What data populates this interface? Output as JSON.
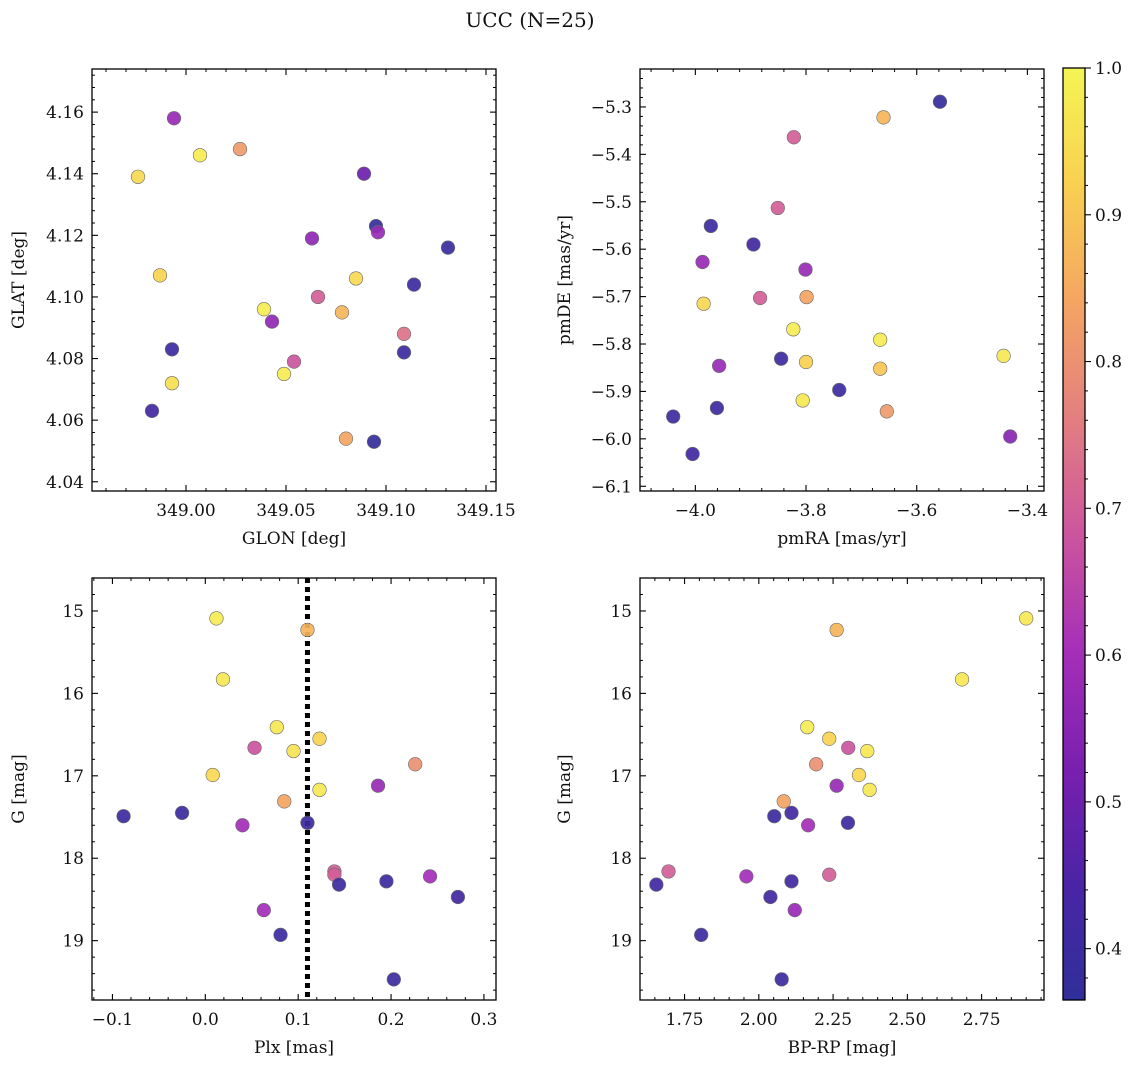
{
  "title": "UCC (N=25)",
  "colorbar": {
    "range": [
      0.365,
      1.0
    ],
    "ticks": [
      0.4,
      0.5,
      0.6,
      0.7,
      0.8,
      0.9,
      1.0
    ],
    "tick_labels": [
      "0.4",
      "0.5",
      "0.6",
      "0.7",
      "0.8",
      "0.9",
      "1.0"
    ],
    "colormap": "plasma (lower half to top)",
    "stops": [
      "#2f2f99",
      "#4a24a6",
      "#7a1fb0",
      "#a52fb8",
      "#cc559e",
      "#e37f7f",
      "#f4a562",
      "#f9d050",
      "#f4f554"
    ]
  },
  "chart_data": [
    {
      "type": "scatter",
      "xlabel": "GLON [deg]",
      "ylabel": "GLAT [deg]",
      "xlim": [
        348.953,
        349.155
      ],
      "ylim": [
        4.037,
        4.174
      ],
      "xticks": [
        349.0,
        349.05,
        349.1,
        349.15
      ],
      "xtick_labels": [
        "349.00",
        "349.05",
        "349.10",
        "349.15"
      ],
      "yticks": [
        4.04,
        4.06,
        4.08,
        4.1,
        4.12,
        4.14,
        4.16
      ],
      "ytick_labels": [
        "4.04",
        "4.06",
        "4.08",
        "4.10",
        "4.12",
        "4.14",
        "4.16"
      ],
      "inverted_y": false,
      "points": [
        {
          "x": 348.976,
          "y": 4.139,
          "c": 0.94
        },
        {
          "x": 348.994,
          "y": 4.158,
          "c": 0.58
        },
        {
          "x": 349.007,
          "y": 4.146,
          "c": 0.98
        },
        {
          "x": 349.027,
          "y": 4.148,
          "c": 0.82
        },
        {
          "x": 349.089,
          "y": 4.14,
          "c": 0.5
        },
        {
          "x": 349.095,
          "y": 4.123,
          "c": 0.38
        },
        {
          "x": 349.096,
          "y": 4.121,
          "c": 0.58
        },
        {
          "x": 349.063,
          "y": 4.119,
          "c": 0.56
        },
        {
          "x": 349.131,
          "y": 4.116,
          "c": 0.39
        },
        {
          "x": 348.987,
          "y": 4.107,
          "c": 0.93
        },
        {
          "x": 349.085,
          "y": 4.106,
          "c": 0.94
        },
        {
          "x": 349.114,
          "y": 4.104,
          "c": 0.4
        },
        {
          "x": 349.066,
          "y": 4.1,
          "c": 0.7
        },
        {
          "x": 349.039,
          "y": 4.096,
          "c": 0.98
        },
        {
          "x": 349.078,
          "y": 4.095,
          "c": 0.87
        },
        {
          "x": 349.043,
          "y": 4.092,
          "c": 0.57
        },
        {
          "x": 349.109,
          "y": 4.088,
          "c": 0.74
        },
        {
          "x": 348.993,
          "y": 4.083,
          "c": 0.4
        },
        {
          "x": 349.109,
          "y": 4.082,
          "c": 0.4
        },
        {
          "x": 349.054,
          "y": 4.079,
          "c": 0.68
        },
        {
          "x": 349.049,
          "y": 4.075,
          "c": 0.98
        },
        {
          "x": 348.993,
          "y": 4.072,
          "c": 0.95
        },
        {
          "x": 348.983,
          "y": 4.063,
          "c": 0.42
        },
        {
          "x": 349.08,
          "y": 4.054,
          "c": 0.84
        },
        {
          "x": 349.094,
          "y": 4.053,
          "c": 0.38
        }
      ]
    },
    {
      "type": "scatter",
      "xlabel": "pmRA [mas/yr]",
      "ylabel": "pmDE [mas/yr]",
      "xlim": [
        -4.1,
        -3.37
      ],
      "ylim": [
        -6.11,
        -5.22
      ],
      "xticks": [
        -4.0,
        -3.8,
        -3.6,
        -3.4
      ],
      "xtick_labels": [
        "−4.0",
        "−3.8",
        "−3.6",
        "−3.4"
      ],
      "yticks": [
        -6.1,
        -6.0,
        -5.9,
        -5.8,
        -5.7,
        -5.6,
        -5.5,
        -5.4,
        -5.3
      ],
      "ytick_labels": [
        "−6.1",
        "−6.0",
        "−5.9",
        "−5.8",
        "−5.7",
        "−5.6",
        "−5.5",
        "−5.4",
        "−5.3"
      ],
      "inverted_y": false,
      "points": [
        {
          "x": -3.558,
          "y": -5.289,
          "c": 0.38
        },
        {
          "x": -3.66,
          "y": -5.322,
          "c": 0.87
        },
        {
          "x": -3.822,
          "y": -5.364,
          "c": 0.7
        },
        {
          "x": -3.851,
          "y": -5.513,
          "c": 0.7
        },
        {
          "x": -3.972,
          "y": -5.551,
          "c": 0.4
        },
        {
          "x": -3.895,
          "y": -5.59,
          "c": 0.42
        },
        {
          "x": -3.987,
          "y": -5.627,
          "c": 0.58
        },
        {
          "x": -3.801,
          "y": -5.643,
          "c": 0.58
        },
        {
          "x": -3.883,
          "y": -5.703,
          "c": 0.7
        },
        {
          "x": -3.799,
          "y": -5.701,
          "c": 0.84
        },
        {
          "x": -3.985,
          "y": -5.715,
          "c": 0.94
        },
        {
          "x": -3.823,
          "y": -5.769,
          "c": 0.98
        },
        {
          "x": -3.666,
          "y": -5.791,
          "c": 0.98
        },
        {
          "x": -3.845,
          "y": -5.831,
          "c": 0.4
        },
        {
          "x": -3.443,
          "y": -5.825,
          "c": 0.97
        },
        {
          "x": -3.8,
          "y": -5.838,
          "c": 0.92
        },
        {
          "x": -3.957,
          "y": -5.846,
          "c": 0.58
        },
        {
          "x": -3.666,
          "y": -5.852,
          "c": 0.9
        },
        {
          "x": -3.74,
          "y": -5.897,
          "c": 0.4
        },
        {
          "x": -3.806,
          "y": -5.919,
          "c": 0.97
        },
        {
          "x": -3.961,
          "y": -5.935,
          "c": 0.4
        },
        {
          "x": -3.654,
          "y": -5.942,
          "c": 0.82
        },
        {
          "x": -4.04,
          "y": -5.953,
          "c": 0.4
        },
        {
          "x": -3.431,
          "y": -5.995,
          "c": 0.55
        },
        {
          "x": -4.005,
          "y": -6.032,
          "c": 0.42
        }
      ]
    },
    {
      "type": "scatter",
      "xlabel": "Plx [mas]",
      "ylabel": "G [mag]",
      "xlim": [
        -0.122,
        0.313
      ],
      "ylim": [
        14.6,
        19.72
      ],
      "xticks": [
        -0.1,
        0.0,
        0.1,
        0.2,
        0.3
      ],
      "xtick_labels": [
        "−0.1",
        "0.0",
        "0.1",
        "0.2",
        "0.3"
      ],
      "yticks": [
        15,
        16,
        17,
        18,
        19
      ],
      "ytick_labels": [
        "15",
        "16",
        "17",
        "18",
        "19"
      ],
      "inverted_y": true,
      "vline": 0.11,
      "points": [
        {
          "x": 0.012,
          "y": 15.09,
          "c": 0.98
        },
        {
          "x": 0.11,
          "y": 15.23,
          "c": 0.87
        },
        {
          "x": 0.019,
          "y": 15.83,
          "c": 0.97
        },
        {
          "x": 0.077,
          "y": 16.41,
          "c": 0.97
        },
        {
          "x": 0.123,
          "y": 16.55,
          "c": 0.93
        },
        {
          "x": 0.053,
          "y": 16.66,
          "c": 0.68
        },
        {
          "x": 0.095,
          "y": 16.7,
          "c": 0.96
        },
        {
          "x": 0.226,
          "y": 16.86,
          "c": 0.8
        },
        {
          "x": 0.008,
          "y": 16.99,
          "c": 0.94
        },
        {
          "x": 0.186,
          "y": 17.12,
          "c": 0.58
        },
        {
          "x": 0.123,
          "y": 17.17,
          "c": 0.97
        },
        {
          "x": 0.085,
          "y": 17.31,
          "c": 0.84
        },
        {
          "x": -0.025,
          "y": 17.45,
          "c": 0.4
        },
        {
          "x": -0.088,
          "y": 17.49,
          "c": 0.4
        },
        {
          "x": 0.11,
          "y": 17.57,
          "c": 0.4
        },
        {
          "x": 0.04,
          "y": 17.6,
          "c": 0.6
        },
        {
          "x": 0.139,
          "y": 18.16,
          "c": 0.7
        },
        {
          "x": 0.139,
          "y": 18.2,
          "c": 0.7
        },
        {
          "x": 0.242,
          "y": 18.22,
          "c": 0.6
        },
        {
          "x": 0.195,
          "y": 18.28,
          "c": 0.4
        },
        {
          "x": 0.144,
          "y": 18.32,
          "c": 0.4
        },
        {
          "x": 0.272,
          "y": 18.47,
          "c": 0.42
        },
        {
          "x": 0.063,
          "y": 18.63,
          "c": 0.6
        },
        {
          "x": 0.081,
          "y": 18.93,
          "c": 0.4
        },
        {
          "x": 0.203,
          "y": 19.47,
          "c": 0.4
        }
      ]
    },
    {
      "type": "scatter",
      "xlabel": "BP-RP [mag]",
      "ylabel": "G [mag]",
      "xlim": [
        1.6,
        2.96
      ],
      "ylim": [
        14.6,
        19.72
      ],
      "xticks": [
        1.75,
        2.0,
        2.25,
        2.5,
        2.75
      ],
      "xtick_labels": [
        "1.75",
        "2.00",
        "2.25",
        "2.50",
        "2.75"
      ],
      "yticks": [
        15,
        16,
        17,
        18,
        19
      ],
      "ytick_labels": [
        "15",
        "16",
        "17",
        "18",
        "19"
      ],
      "inverted_y": true,
      "points": [
        {
          "x": 2.9,
          "y": 15.09,
          "c": 0.97
        },
        {
          "x": 2.262,
          "y": 15.23,
          "c": 0.87
        },
        {
          "x": 2.684,
          "y": 15.83,
          "c": 0.97
        },
        {
          "x": 2.163,
          "y": 16.41,
          "c": 0.98
        },
        {
          "x": 2.237,
          "y": 16.55,
          "c": 0.93
        },
        {
          "x": 2.301,
          "y": 16.66,
          "c": 0.68
        },
        {
          "x": 2.365,
          "y": 16.7,
          "c": 0.97
        },
        {
          "x": 2.193,
          "y": 16.86,
          "c": 0.8
        },
        {
          "x": 2.337,
          "y": 16.99,
          "c": 0.94
        },
        {
          "x": 2.262,
          "y": 17.12,
          "c": 0.58
        },
        {
          "x": 2.373,
          "y": 17.17,
          "c": 0.97
        },
        {
          "x": 2.084,
          "y": 17.31,
          "c": 0.84
        },
        {
          "x": 2.11,
          "y": 17.45,
          "c": 0.42
        },
        {
          "x": 2.052,
          "y": 17.49,
          "c": 0.4
        },
        {
          "x": 2.3,
          "y": 17.57,
          "c": 0.4
        },
        {
          "x": 2.166,
          "y": 17.6,
          "c": 0.6
        },
        {
          "x": 1.696,
          "y": 18.16,
          "c": 0.7
        },
        {
          "x": 2.237,
          "y": 18.2,
          "c": 0.7
        },
        {
          "x": 1.958,
          "y": 18.22,
          "c": 0.6
        },
        {
          "x": 2.11,
          "y": 18.28,
          "c": 0.42
        },
        {
          "x": 1.655,
          "y": 18.32,
          "c": 0.42
        },
        {
          "x": 2.039,
          "y": 18.47,
          "c": 0.42
        },
        {
          "x": 2.121,
          "y": 18.63,
          "c": 0.58
        },
        {
          "x": 1.806,
          "y": 18.93,
          "c": 0.4
        },
        {
          "x": 2.077,
          "y": 19.47,
          "c": 0.4
        }
      ]
    }
  ]
}
